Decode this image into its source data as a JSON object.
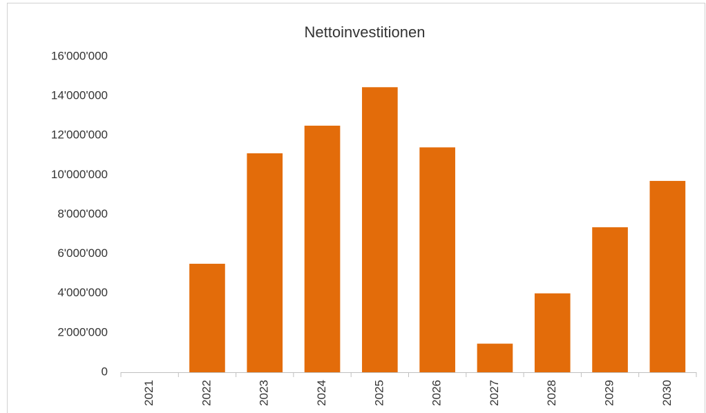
{
  "chart_data": {
    "type": "bar",
    "title": "Nettoinvestitionen",
    "categories": [
      "2021",
      "2022",
      "2023",
      "2024",
      "2025",
      "2026",
      "2027",
      "2028",
      "2029",
      "2030"
    ],
    "values": [
      0,
      5500000,
      11100000,
      12500000,
      14450000,
      11400000,
      1450000,
      4000000,
      7350000,
      9700000
    ],
    "color": "#e36c0a",
    "ylim": [
      0,
      16000000
    ],
    "yticks": [
      0,
      {
        "value": 2000000,
        "label": "2'000'000"
      },
      {
        "value": 4000000,
        "label": "4'000'000"
      },
      {
        "value": 6000000,
        "label": "6'000'000"
      },
      {
        "value": 8000000,
        "label": "8'000'000"
      },
      {
        "value": 10000000,
        "label": "10'000'000"
      },
      {
        "value": 12000000,
        "label": "12'000'000"
      },
      {
        "value": 14000000,
        "label": "14'000'000"
      },
      {
        "value": 16000000,
        "label": "16'000'000"
      }
    ],
    "grid": false
  }
}
